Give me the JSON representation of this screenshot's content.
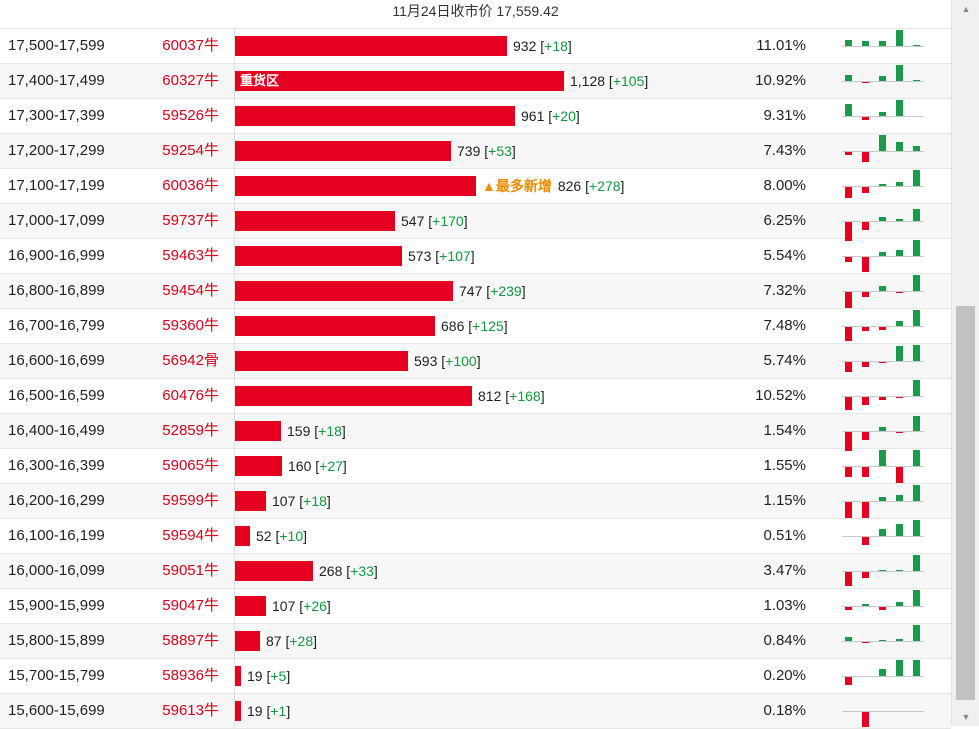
{
  "header": {
    "title": "11月24日收市价 17,559.42"
  },
  "colors": {
    "bar": "#e5001f",
    "increase": "#109a3e",
    "tag": "#f08c00",
    "price": "#d9001b"
  },
  "rows": [
    {
      "range": "17,500-17,599",
      "price": "60037牛",
      "value": 932,
      "total": "932",
      "inc": "+18",
      "tag": "",
      "pct": "11.01%",
      "mini": [
        5,
        4,
        4,
        13,
        1
      ]
    },
    {
      "range": "17,400-17,499",
      "price": "60327牛",
      "value": 1128,
      "total": "1,128",
      "inc": "+105",
      "tag": "",
      "bar_text": "重货区",
      "pct": "10.92%",
      "mini": [
        5,
        -1,
        4,
        13,
        1
      ]
    },
    {
      "range": "17,300-17,399",
      "price": "59526牛",
      "value": 961,
      "total": "961",
      "inc": "+20",
      "tag": "",
      "pct": "9.31%",
      "mini": [
        10,
        -2,
        3,
        13,
        0
      ]
    },
    {
      "range": "17,200-17,299",
      "price": "59254牛",
      "value": 739,
      "total": "739",
      "inc": "+53",
      "tag": "",
      "pct": "7.43%",
      "mini": [
        -2,
        -8,
        13,
        7,
        4
      ]
    },
    {
      "range": "17,100-17,199",
      "price": "60036牛",
      "value": 826,
      "total": "826",
      "inc": "+278",
      "tag": "▲最多新增",
      "pct": "8.00%",
      "mini": [
        -9,
        -5,
        2,
        3,
        13
      ]
    },
    {
      "range": "17,000-17,099",
      "price": "59737牛",
      "value": 547,
      "total": "547",
      "inc": "+170",
      "tag": "",
      "pct": "6.25%",
      "mini": [
        -15,
        -6,
        3,
        2,
        10
      ]
    },
    {
      "range": "16,900-16,999",
      "price": "59463牛",
      "value": 573,
      "total": "573",
      "inc": "+107",
      "tag": "",
      "pct": "5.54%",
      "mini": [
        -4,
        -12,
        3,
        5,
        13
      ]
    },
    {
      "range": "16,800-16,899",
      "price": "59454牛",
      "value": 747,
      "total": "747",
      "inc": "+239",
      "tag": "",
      "pct": "7.32%",
      "mini": [
        -13,
        -4,
        4,
        -1,
        13
      ]
    },
    {
      "range": "16,700-16,799",
      "price": "59360牛",
      "value": 686,
      "total": "686",
      "inc": "+125",
      "tag": "",
      "pct": "7.48%",
      "mini": [
        -11,
        -3,
        -2,
        4,
        13
      ]
    },
    {
      "range": "16,600-16,699",
      "price": "56942骨",
      "value": 593,
      "total": "593",
      "inc": "+100",
      "tag": "",
      "pct": "5.74%",
      "mini": [
        -8,
        -4,
        -1,
        12,
        13
      ]
    },
    {
      "range": "16,500-16,599",
      "price": "60476牛",
      "value": 812,
      "total": "812",
      "inc": "+168",
      "tag": "",
      "pct": "10.52%",
      "mini": [
        -10,
        -6,
        -2,
        -1,
        13
      ]
    },
    {
      "range": "16,400-16,499",
      "price": "52859牛",
      "value": 159,
      "total": "159",
      "inc": "+18",
      "tag": "",
      "pct": "1.54%",
      "mini": [
        -15,
        -6,
        3,
        -1,
        12
      ]
    },
    {
      "range": "16,300-16,399",
      "price": "59065牛",
      "value": 160,
      "total": "160",
      "inc": "+27",
      "tag": "",
      "pct": "1.55%",
      "mini": [
        -8,
        -8,
        13,
        -13,
        13
      ]
    },
    {
      "range": "16,200-16,299",
      "price": "59599牛",
      "value": 107,
      "total": "107",
      "inc": "+18",
      "tag": "",
      "pct": "1.15%",
      "mini": [
        -13,
        -13,
        3,
        5,
        13
      ]
    },
    {
      "range": "16,100-16,199",
      "price": "59594牛",
      "value": 52,
      "total": "52",
      "inc": "+10",
      "tag": "",
      "pct": "0.51%",
      "mini": [
        0,
        -6,
        6,
        10,
        13
      ]
    },
    {
      "range": "16,000-16,099",
      "price": "59051牛",
      "value": 268,
      "total": "268",
      "inc": "+33",
      "tag": "",
      "pct": "3.47%",
      "mini": [
        -11,
        -5,
        1,
        1,
        13
      ]
    },
    {
      "range": "15,900-15,999",
      "price": "59047牛",
      "value": 107,
      "total": "107",
      "inc": "+26",
      "tag": "",
      "pct": "1.03%",
      "mini": [
        -2,
        2,
        -2,
        3,
        13
      ]
    },
    {
      "range": "15,800-15,899",
      "price": "58897牛",
      "value": 87,
      "total": "87",
      "inc": "+28",
      "tag": "",
      "pct": "0.84%",
      "mini": [
        3,
        -1,
        1,
        2,
        13
      ]
    },
    {
      "range": "15,700-15,799",
      "price": "58936牛",
      "value": 19,
      "total": "19",
      "inc": "+5",
      "tag": "",
      "pct": "0.20%",
      "mini": [
        -6,
        0,
        6,
        13,
        13
      ]
    },
    {
      "range": "15,600-15,699",
      "price": "59613牛",
      "value": 19,
      "total": "19",
      "inc": "+1",
      "tag": "",
      "pct": "0.18%",
      "mini": [
        0,
        -12,
        0,
        0,
        0
      ]
    }
  ]
}
